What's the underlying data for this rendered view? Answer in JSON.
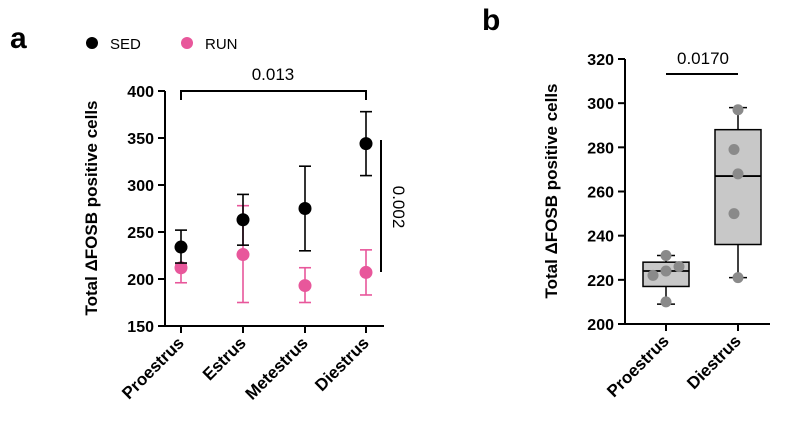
{
  "chart_data": [
    {
      "panel": "a",
      "type": "scatter",
      "categories": [
        "Proestrus",
        "Estrus",
        "Metestrus",
        "Diestrus"
      ],
      "ylabel": "Total ΔFOSB positive cells",
      "xlabel": "",
      "ylim": [
        150,
        400
      ],
      "yticks": [
        150,
        200,
        250,
        300,
        350,
        400
      ],
      "legend_position": "top",
      "series": [
        {
          "name": "SED",
          "color": "#000000",
          "values": [
            234,
            263,
            275,
            344
          ],
          "err_low": [
            217,
            236,
            230,
            310
          ],
          "err_high": [
            252,
            290,
            320,
            378
          ]
        },
        {
          "name": "RUN",
          "color": "#e8579b",
          "values": [
            212,
            226,
            193,
            207
          ],
          "err_low": [
            196,
            175,
            175,
            183
          ],
          "err_high": [
            216,
            278,
            212,
            231
          ]
        }
      ],
      "annotations": [
        {
          "text": "0.013",
          "between": [
            "Proestrus",
            "Diestrus"
          ],
          "series": "SED"
        },
        {
          "text": "0.002",
          "compare": "SED vs RUN at Diestrus",
          "orientation": "vertical"
        }
      ]
    },
    {
      "panel": "b",
      "type": "box",
      "categories": [
        "Proestrus",
        "Diestrus"
      ],
      "ylabel": "Total ΔFOSB positive cells",
      "xlabel": "",
      "ylim": [
        200,
        320
      ],
      "yticks": [
        200,
        220,
        240,
        260,
        280,
        300,
        320
      ],
      "box_color": "#c8c8c8",
      "point_color": "#8a8a8a",
      "boxes": [
        {
          "min": 209,
          "q1": 217,
          "median": 224,
          "q3": 228,
          "max": 231,
          "points": [
            210,
            222,
            224,
            226,
            231
          ]
        },
        {
          "min": 221,
          "q1": 236,
          "median": 267,
          "q3": 288,
          "max": 298,
          "points": [
            221,
            250,
            268,
            279,
            297
          ]
        }
      ],
      "annotations": [
        {
          "text": "0.0170",
          "between": [
            "Proestrus",
            "Diestrus"
          ]
        }
      ]
    }
  ]
}
